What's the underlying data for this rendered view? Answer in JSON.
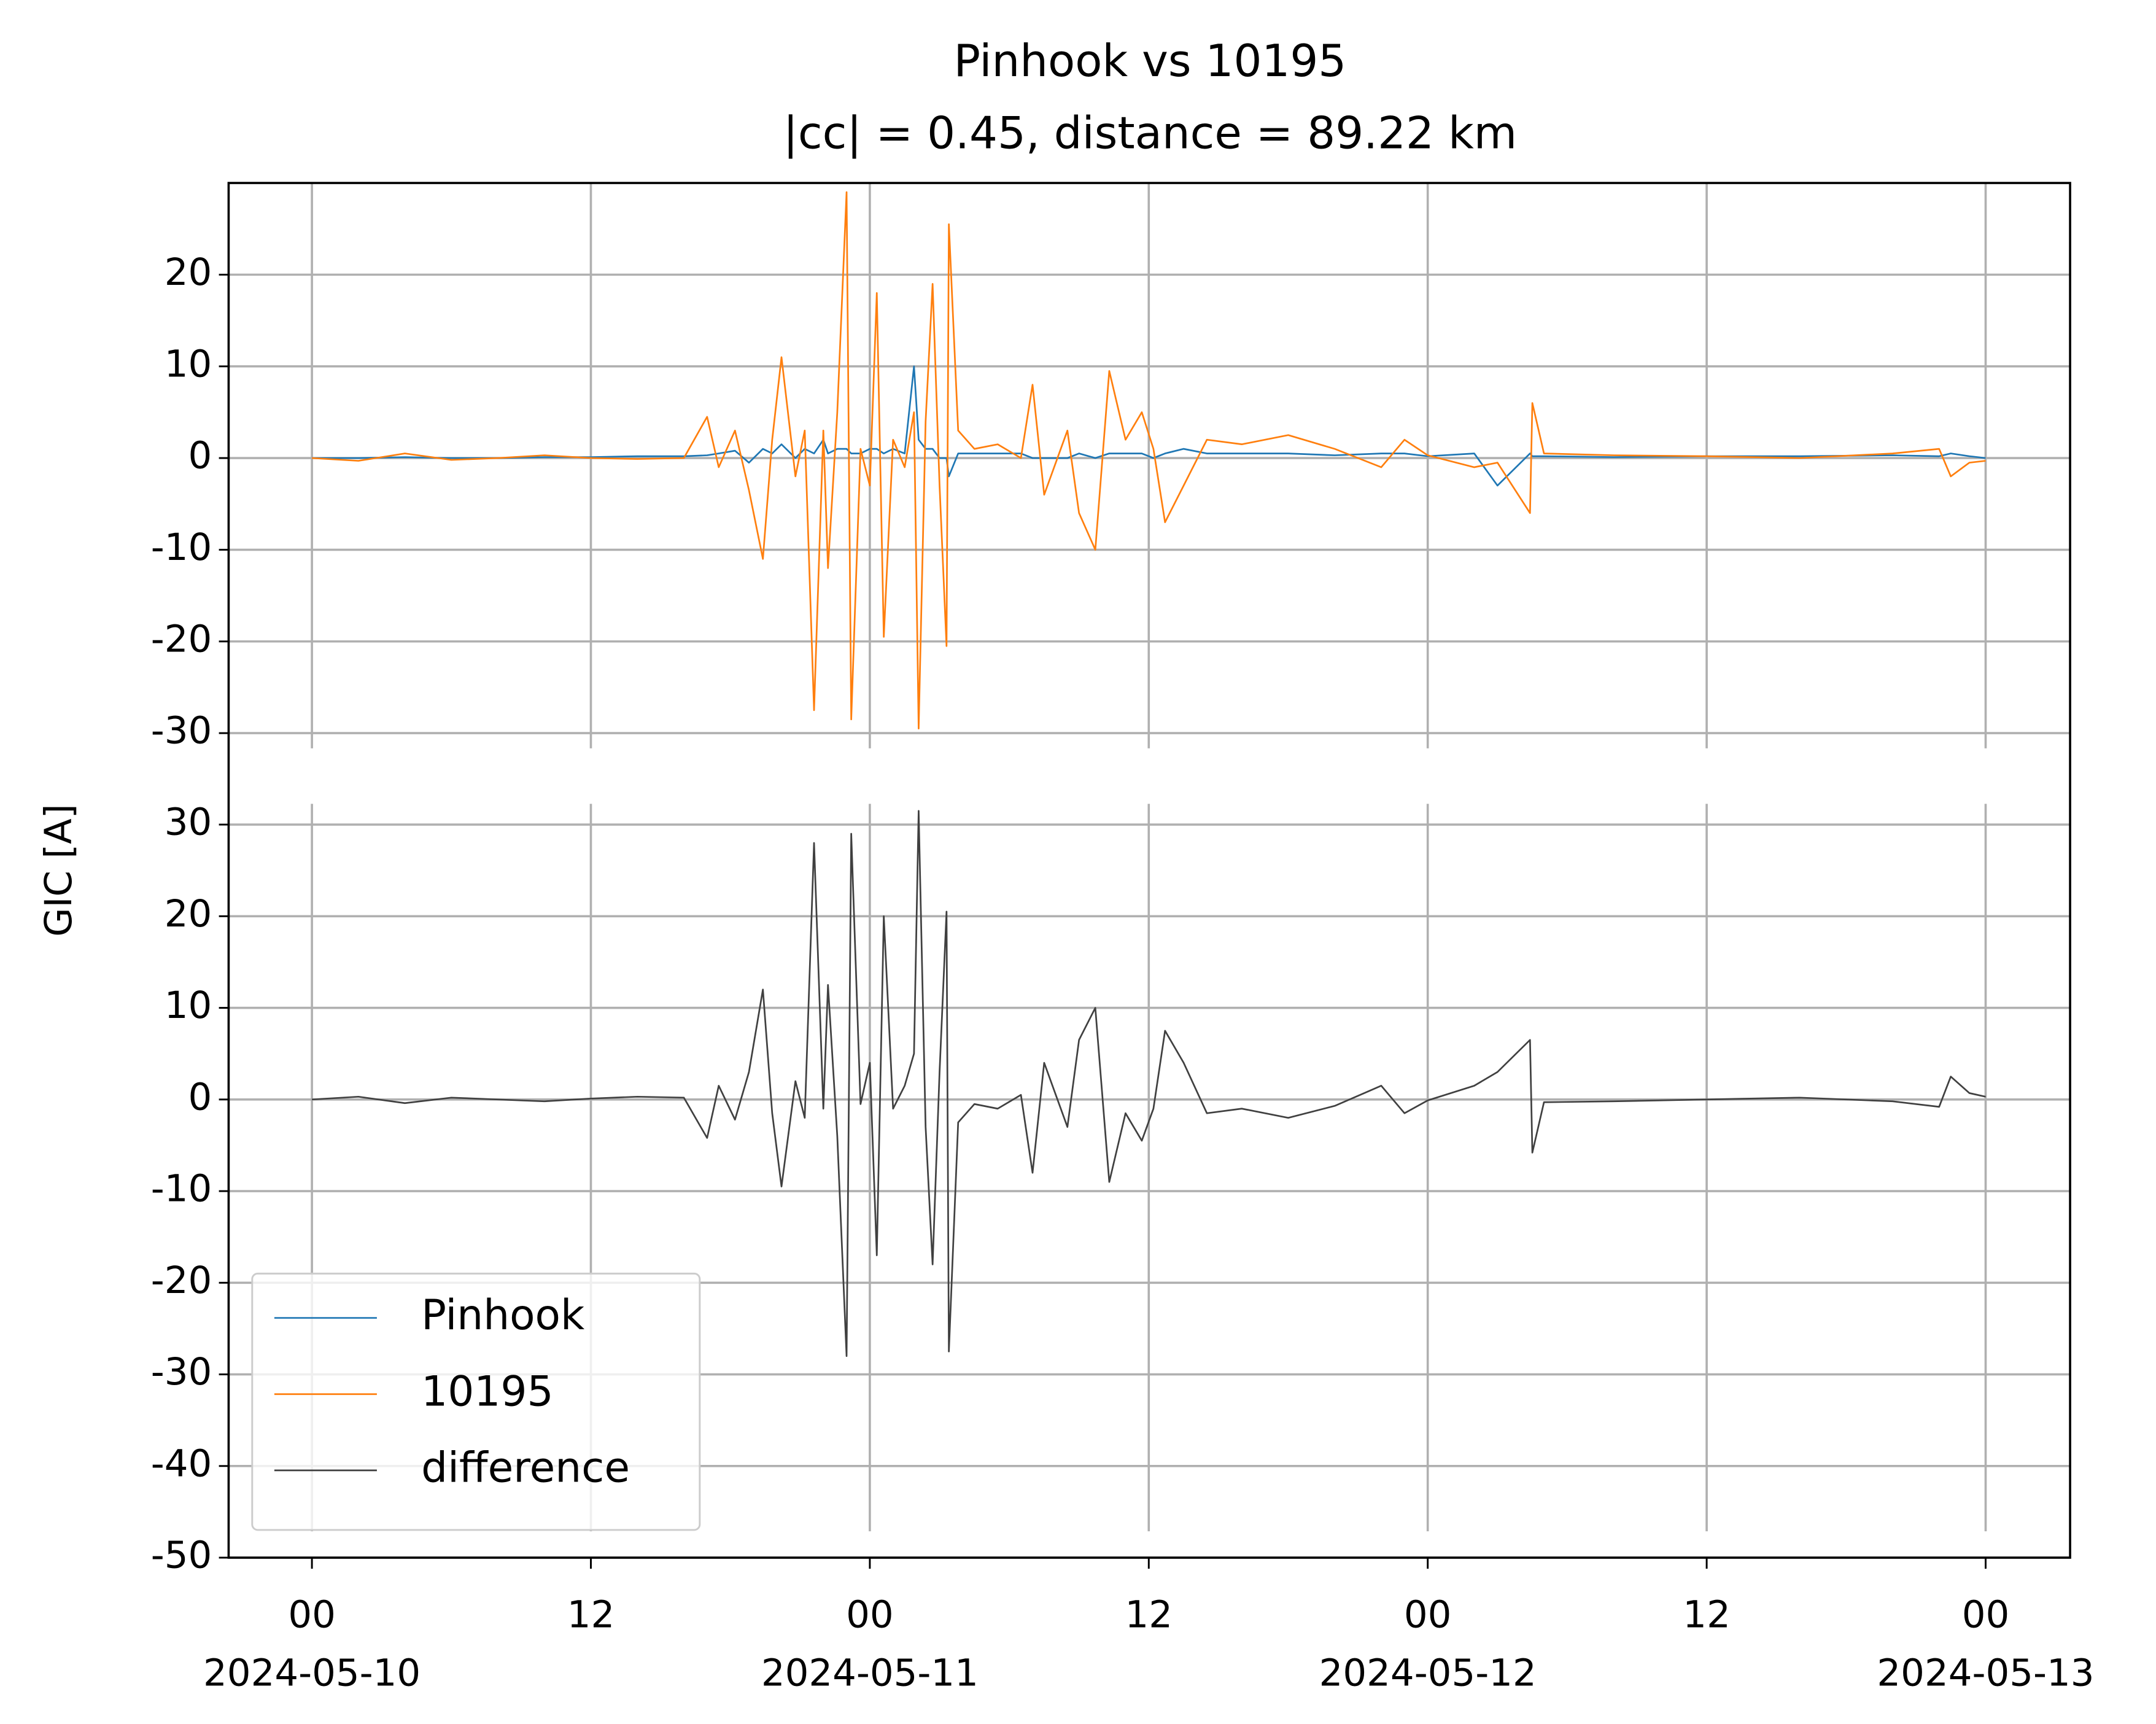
{
  "chart_data": [
    {
      "type": "line",
      "title": "Pinhook vs 10195",
      "subtitle": "|cc| = 0.45, distance = 89.22 km",
      "x": [
        "2024-05-10T00:00",
        "2024-05-10T02:00",
        "2024-05-10T04:00",
        "2024-05-10T06:00",
        "2024-05-10T08:00",
        "2024-05-10T10:00",
        "2024-05-10T12:00",
        "2024-05-10T14:00",
        "2024-05-10T16:00",
        "2024-05-10T17:00",
        "2024-05-10T17:30",
        "2024-05-10T18:12",
        "2024-05-10T18:48",
        "2024-05-10T19:24",
        "2024-05-10T19:48",
        "2024-05-10T20:12",
        "2024-05-10T20:48",
        "2024-05-10T21:12",
        "2024-05-10T21:36",
        "2024-05-10T22:00",
        "2024-05-10T22:12",
        "2024-05-10T22:36",
        "2024-05-10T23:00",
        "2024-05-10T23:12",
        "2024-05-10T23:36",
        "2024-05-11T00:00",
        "2024-05-11T00:18",
        "2024-05-11T00:36",
        "2024-05-11T01:00",
        "2024-05-11T01:30",
        "2024-05-11T01:54",
        "2024-05-11T02:06",
        "2024-05-11T02:24",
        "2024-05-11T02:42",
        "2024-05-11T03:00",
        "2024-05-11T03:18",
        "2024-05-11T03:24",
        "2024-05-11T03:48",
        "2024-05-11T04:30",
        "2024-05-11T05:30",
        "2024-05-11T06:30",
        "2024-05-11T07:00",
        "2024-05-11T07:30",
        "2024-05-11T08:30",
        "2024-05-11T09:00",
        "2024-05-11T09:42",
        "2024-05-11T10:18",
        "2024-05-11T11:00",
        "2024-05-11T11:42",
        "2024-05-11T12:12",
        "2024-05-11T12:42",
        "2024-05-11T13:30",
        "2024-05-11T14:30",
        "2024-05-11T16:00",
        "2024-05-11T18:00",
        "2024-05-11T20:00",
        "2024-05-11T22:00",
        "2024-05-11T23:00",
        "2024-05-12T00:00",
        "2024-05-12T02:00",
        "2024-05-12T03:00",
        "2024-05-12T04:24",
        "2024-05-12T04:30",
        "2024-05-12T05:00",
        "2024-05-12T08:00",
        "2024-05-12T12:00",
        "2024-05-12T16:00",
        "2024-05-12T20:00",
        "2024-05-12T22:00",
        "2024-05-12T22:30",
        "2024-05-12T23:18",
        "2024-05-13T00:00"
      ],
      "xlim": [
        "2024-05-09T20:25",
        "2024-05-13T03:38"
      ],
      "ylim": [
        -30,
        30
      ],
      "yticks": [
        -30,
        -20,
        -10,
        0,
        10,
        20
      ],
      "grid": true,
      "series": [
        {
          "name": "Pinhook",
          "color": "#1f77b4",
          "values": [
            0,
            0,
            0.1,
            0,
            0,
            0.1,
            0.1,
            0.2,
            0.2,
            0.3,
            0.5,
            0.8,
            -0.5,
            1,
            0.5,
            1.5,
            0,
            1,
            0.5,
            2,
            0.5,
            1,
            1,
            0.5,
            0.5,
            1,
            1,
            0.5,
            1,
            0.5,
            10,
            2,
            1,
            1,
            0,
            0,
            -2,
            0.5,
            0.5,
            0.5,
            0.5,
            0,
            0,
            0,
            0.5,
            0,
            0.5,
            0.5,
            0.5,
            0,
            0.5,
            1,
            0.5,
            0.5,
            0.5,
            0.3,
            0.5,
            0.5,
            0.2,
            0.5,
            -3,
            0.5,
            0.2,
            0.2,
            0.1,
            0.2,
            0.2,
            0.3,
            0.2,
            0.5,
            0.2,
            0
          ]
        },
        {
          "name": "10195",
          "color": "#ff7f0e",
          "values": [
            0,
            -0.3,
            0.5,
            -0.2,
            0,
            0.3,
            0,
            -0.1,
            0,
            4.5,
            -1,
            3,
            -3.5,
            -11,
            2,
            11,
            -2,
            3,
            -27.5,
            3,
            -12,
            5,
            29,
            -28.5,
            1,
            -3,
            18,
            -19.5,
            2,
            -1,
            5,
            -29.5,
            4,
            19,
            -3,
            -20.5,
            25.5,
            3,
            1,
            1.5,
            0,
            8,
            -4,
            3,
            -6,
            -10,
            9.5,
            2,
            5,
            1,
            -7,
            -3,
            2,
            1.5,
            2.5,
            1,
            -1,
            2,
            0.3,
            -1,
            -0.5,
            -6,
            6,
            0.5,
            0.3,
            0.2,
            0,
            0.5,
            1,
            -2,
            -0.5,
            -0.3
          ]
        }
      ]
    },
    {
      "type": "line",
      "ylabel": "GIC [A]",
      "ylim": [
        -50,
        30
      ],
      "yticks": [
        -50,
        -40,
        -30,
        -20,
        -10,
        0,
        10,
        20,
        30
      ],
      "grid": true,
      "legend": "lower left",
      "xticks": [
        {
          "value": "2024-05-10T00:00",
          "label": "00",
          "date": "2024-05-10"
        },
        {
          "value": "2024-05-10T12:00",
          "label": "12"
        },
        {
          "value": "2024-05-11T00:00",
          "label": "00",
          "date": "2024-05-11"
        },
        {
          "value": "2024-05-11T12:00",
          "label": "12"
        },
        {
          "value": "2024-05-12T00:00",
          "label": "00",
          "date": "2024-05-12"
        },
        {
          "value": "2024-05-12T12:00",
          "label": "12"
        },
        {
          "value": "2024-05-13T00:00",
          "label": "00",
          "date": "2024-05-13"
        }
      ],
      "series": [
        {
          "name": "difference",
          "color": "#404040",
          "values": [
            0,
            0.3,
            -0.4,
            0.2,
            0,
            -0.2,
            0.1,
            0.3,
            0.2,
            -4.2,
            1.5,
            -2.2,
            3,
            12,
            -1.5,
            -9.5,
            2,
            -2,
            28,
            -1,
            12.5,
            -4,
            -28,
            29,
            -0.5,
            4,
            -17,
            20,
            -1,
            1.5,
            5,
            31.5,
            -3,
            -18,
            3,
            20.5,
            -27.5,
            -2.5,
            -0.5,
            -1,
            0.5,
            -8,
            4,
            -3,
            6.5,
            10,
            -9,
            -1.5,
            -4.5,
            -1,
            7.5,
            4,
            -1.5,
            -1,
            -2,
            -0.7,
            1.5,
            -1.5,
            -0.1,
            1.5,
            3,
            6.5,
            -5.8,
            -0.3,
            -0.2,
            0,
            0.2,
            -0.2,
            -0.8,
            2.5,
            0.7,
            0.3
          ]
        }
      ]
    }
  ]
}
